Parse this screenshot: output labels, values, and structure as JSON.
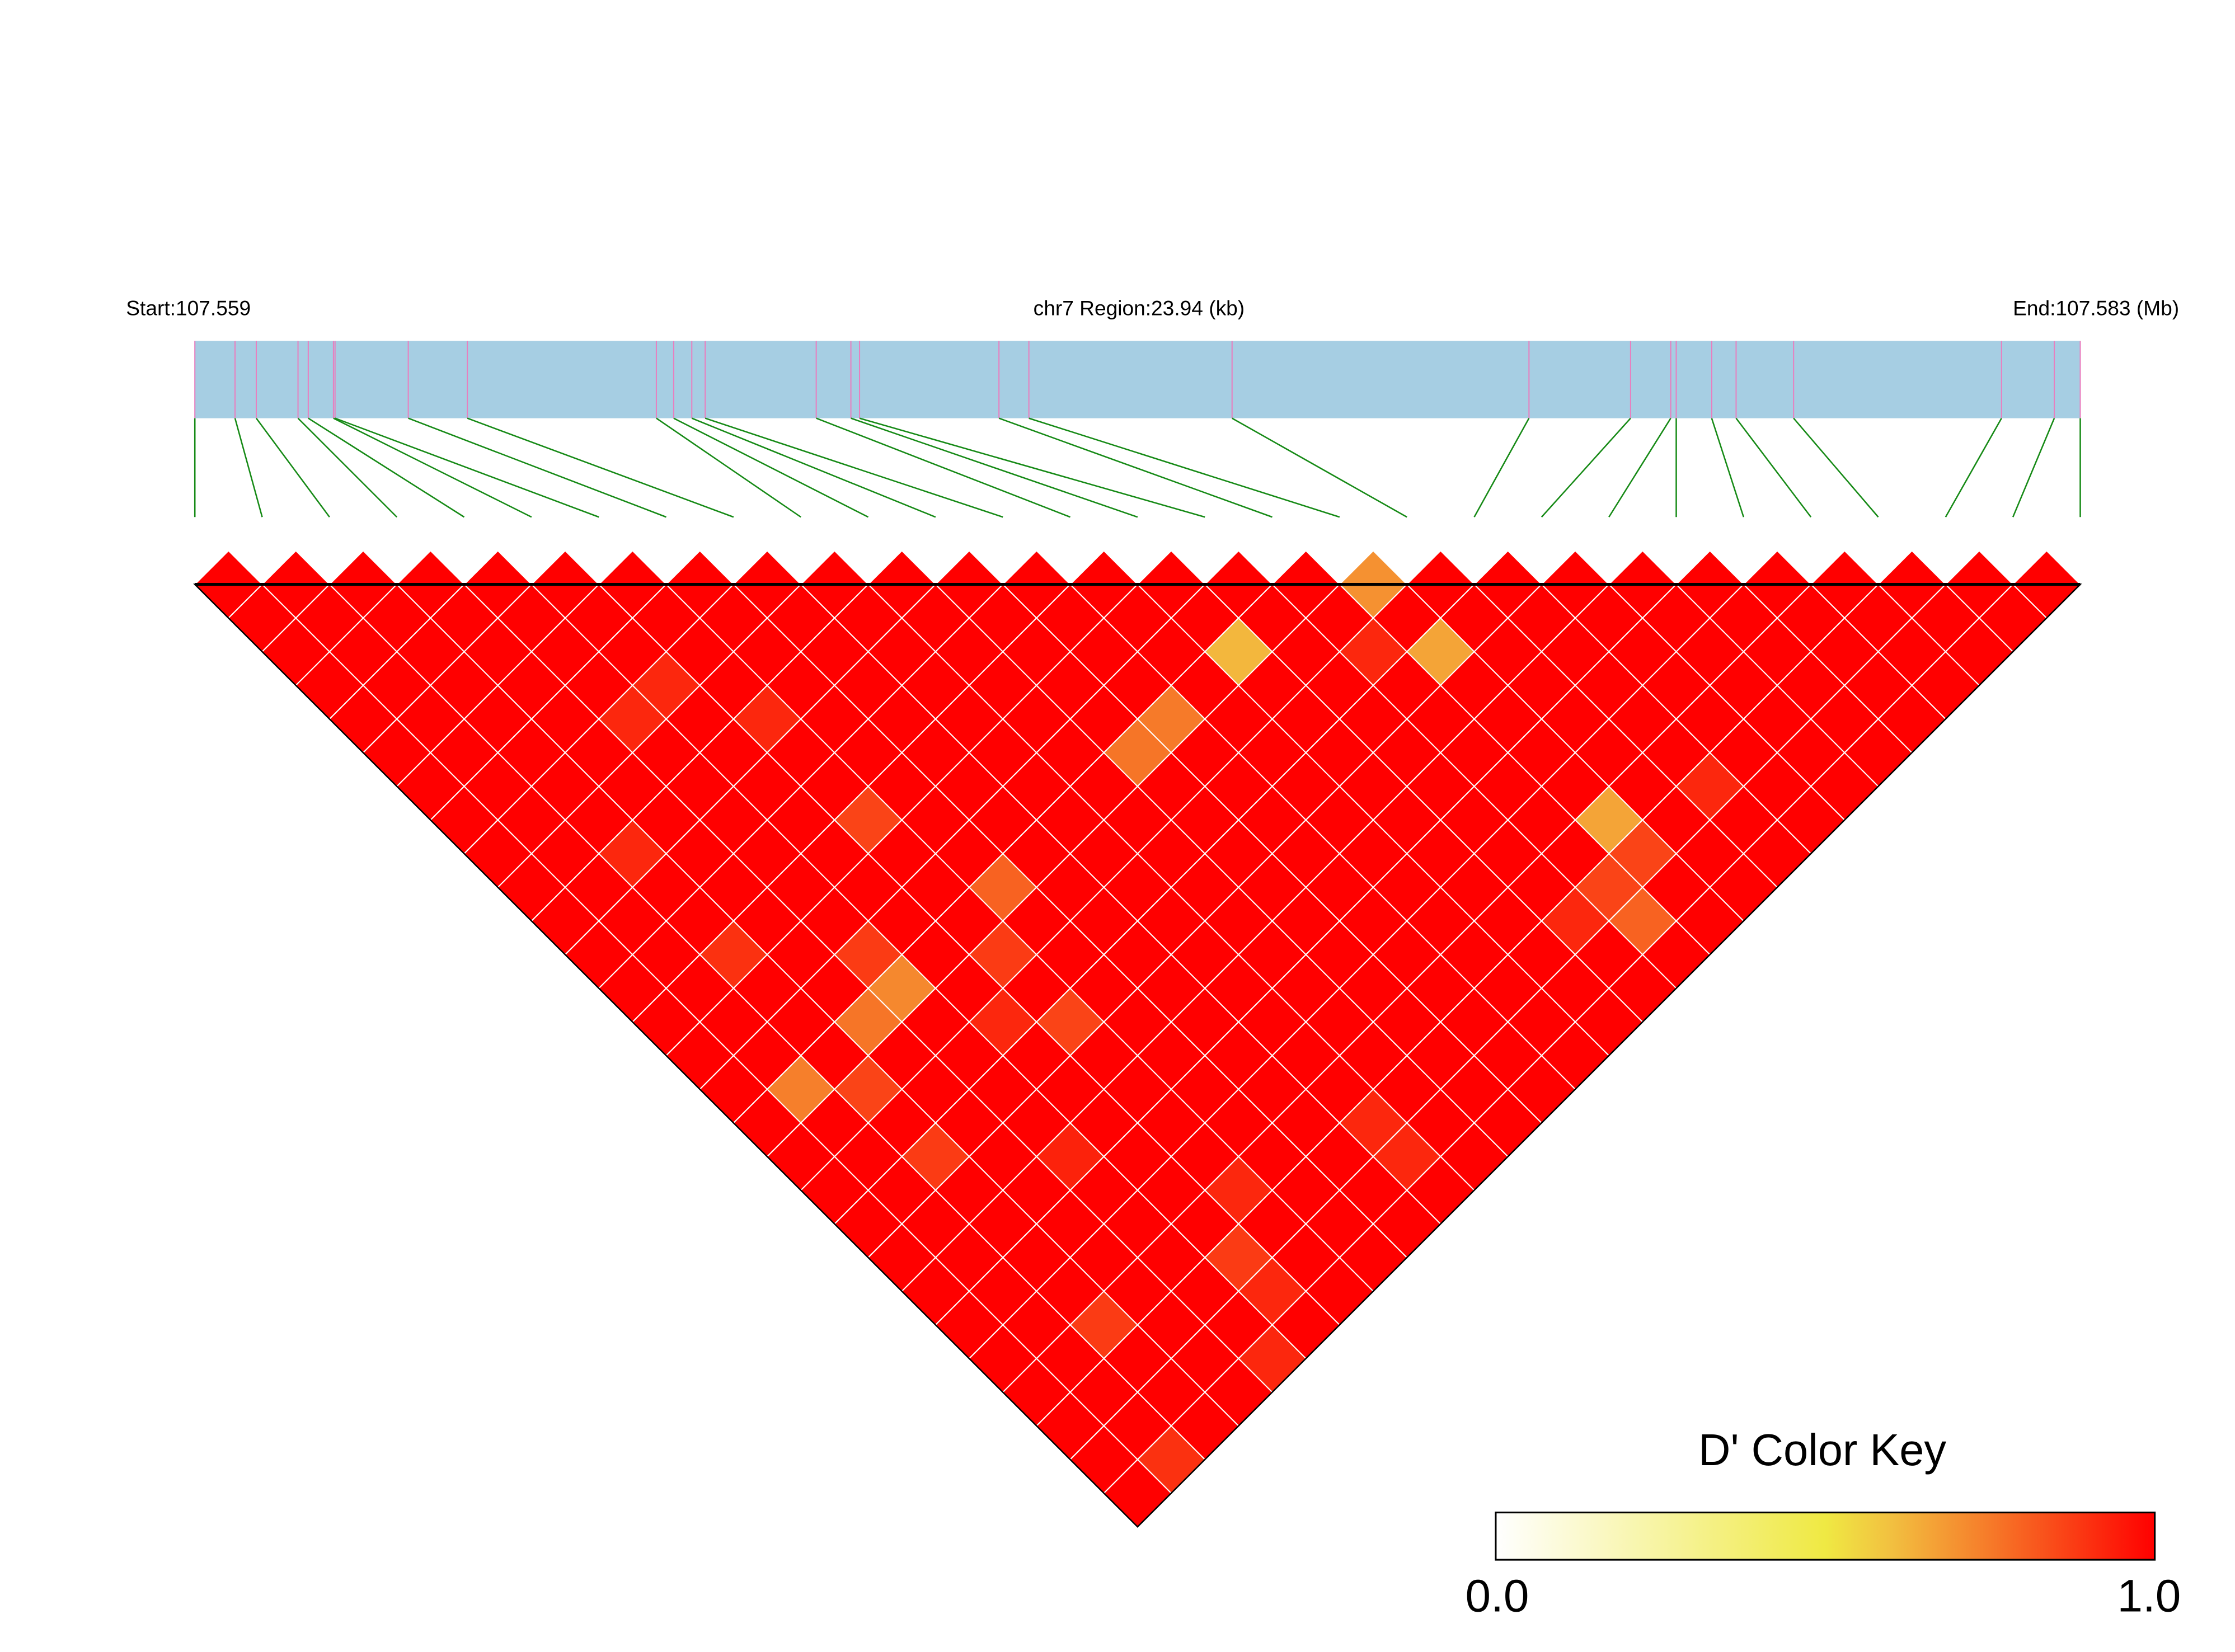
{
  "chart_data": {
    "type": "heatmap",
    "title": "",
    "region": {
      "start_label": "Start:107.559",
      "center_label": "chr7 Region:23.94 (kb)",
      "end_label": "End:107.583 (Mb)"
    },
    "snp_positions_kb": [
      0,
      0.51,
      0.78,
      1.31,
      1.44,
      1.76,
      1.78,
      2.71,
      3.46,
      5.86,
      6.08,
      6.31,
      6.48,
      7.89,
      8.33,
      8.44,
      10.21,
      10.59,
      13.17,
      16.94,
      18.23,
      18.74,
      18.81,
      19.26,
      19.57,
      20.3,
      22.94,
      23.61,
      23.94
    ],
    "region_length_kb": 23.94,
    "other_cells_value": 1.0,
    "cells_below_1": [
      [
        17,
        18,
        0.7
      ],
      [
        14,
        17,
        0.62
      ],
      [
        17,
        20,
        0.66
      ],
      [
        16,
        19,
        0.92
      ],
      [
        12,
        17,
        0.75
      ],
      [
        11,
        17,
        0.76
      ],
      [
        5,
        9,
        0.92
      ],
      [
        4,
        9,
        0.92
      ],
      [
        6,
        11,
        0.92
      ],
      [
        6,
        14,
        0.86
      ],
      [
        19,
        26,
        0.92
      ],
      [
        17,
        25,
        0.66
      ],
      [
        17,
        26,
        0.86
      ],
      [
        16,
        26,
        0.86
      ],
      [
        16,
        27,
        0.8
      ],
      [
        15,
        26,
        0.92
      ],
      [
        2,
        11,
        0.92
      ],
      [
        7,
        17,
        0.8
      ],
      [
        2,
        14,
        0.9
      ],
      [
        4,
        16,
        0.88
      ],
      [
        6,
        18,
        0.88
      ],
      [
        4,
        17,
        0.72
      ],
      [
        3,
        17,
        0.76
      ],
      [
        6,
        20,
        0.86
      ],
      [
        5,
        19,
        0.92
      ],
      [
        1,
        17,
        0.74
      ],
      [
        2,
        18,
        0.86
      ],
      [
        2,
        20,
        0.88
      ],
      [
        9,
        26,
        0.92
      ],
      [
        9,
        27,
        0.92
      ],
      [
        6,
        25,
        0.92
      ],
      [
        5,
        26,
        0.88
      ],
      [
        5,
        27,
        0.92
      ],
      [
        2,
        25,
        0.88
      ],
      [
        4,
        28,
        0.92
      ],
      [
        1,
        28,
        0.9
      ],
      [
        4,
        22,
        0.93
      ]
    ],
    "color_key": {
      "title": "D' Color Key",
      "min_label": "0.0",
      "max_label": "1.0",
      "range": [
        0,
        1
      ],
      "stops": [
        {
          "value": 0.0,
          "color": "#ffffff"
        },
        {
          "value": 0.5,
          "color": "#efe943"
        },
        {
          "value": 0.6,
          "color": "#f2c040"
        },
        {
          "value": 0.75,
          "color": "#f67a29"
        },
        {
          "value": 1.0,
          "color": "#ff0000"
        }
      ]
    },
    "colors": {
      "gene_bar": "#a6cee3",
      "snp_tick": "#e87fbf",
      "connector": "#168a16",
      "cell_border": "#ffffff",
      "outline": "#000000"
    }
  }
}
